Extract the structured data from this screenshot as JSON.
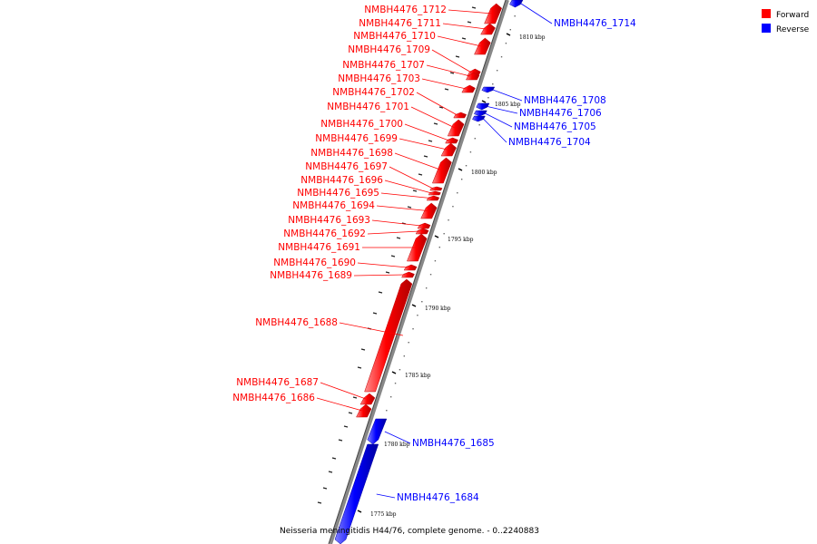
{
  "caption": "Neisseria meningitidis H44/76, complete genome. - 0..2240883",
  "legend": {
    "forward": {
      "label": "Forward",
      "color": "#ff0000"
    },
    "reverse": {
      "label": "Reverse",
      "color": "#0000ff"
    }
  },
  "ticks": [
    {
      "label": "1775 kbp"
    },
    {
      "label": "1780 kbp"
    },
    {
      "label": "1785 kbp"
    },
    {
      "label": "1790 kbp"
    },
    {
      "label": "1795 kbp"
    },
    {
      "label": "1800 kbp"
    },
    {
      "label": "1805 kbp"
    },
    {
      "label": "1810 kbp"
    }
  ],
  "genes": [
    {
      "name": "NMBH4476_1712",
      "strand": "forward"
    },
    {
      "name": "NMBH4476_1711",
      "strand": "forward"
    },
    {
      "name": "NMBH4476_1710",
      "strand": "forward"
    },
    {
      "name": "NMBH4476_1709",
      "strand": "forward"
    },
    {
      "name": "NMBH4476_1707",
      "strand": "forward"
    },
    {
      "name": "NMBH4476_1703",
      "strand": "forward"
    },
    {
      "name": "NMBH4476_1702",
      "strand": "forward"
    },
    {
      "name": "NMBH4476_1701",
      "strand": "forward"
    },
    {
      "name": "NMBH4476_1700",
      "strand": "forward"
    },
    {
      "name": "NMBH4476_1699",
      "strand": "forward"
    },
    {
      "name": "NMBH4476_1698",
      "strand": "forward"
    },
    {
      "name": "NMBH4476_1697",
      "strand": "forward"
    },
    {
      "name": "NMBH4476_1696",
      "strand": "forward"
    },
    {
      "name": "NMBH4476_1695",
      "strand": "forward"
    },
    {
      "name": "NMBH4476_1694",
      "strand": "forward"
    },
    {
      "name": "NMBH4476_1693",
      "strand": "forward"
    },
    {
      "name": "NMBH4476_1692",
      "strand": "forward"
    },
    {
      "name": "NMBH4476_1691",
      "strand": "forward"
    },
    {
      "name": "NMBH4476_1690",
      "strand": "forward"
    },
    {
      "name": "NMBH4476_1689",
      "strand": "forward"
    },
    {
      "name": "NMBH4476_1688",
      "strand": "forward"
    },
    {
      "name": "NMBH4476_1687",
      "strand": "forward"
    },
    {
      "name": "NMBH4476_1686",
      "strand": "forward"
    },
    {
      "name": "NMBH4476_1714",
      "strand": "reverse"
    },
    {
      "name": "NMBH4476_1708",
      "strand": "reverse"
    },
    {
      "name": "NMBH4476_1706",
      "strand": "reverse"
    },
    {
      "name": "NMBH4476_1705",
      "strand": "reverse"
    },
    {
      "name": "NMBH4476_1704",
      "strand": "reverse"
    },
    {
      "name": "NMBH4476_1685",
      "strand": "reverse"
    },
    {
      "name": "NMBH4476_1684",
      "strand": "reverse"
    }
  ]
}
